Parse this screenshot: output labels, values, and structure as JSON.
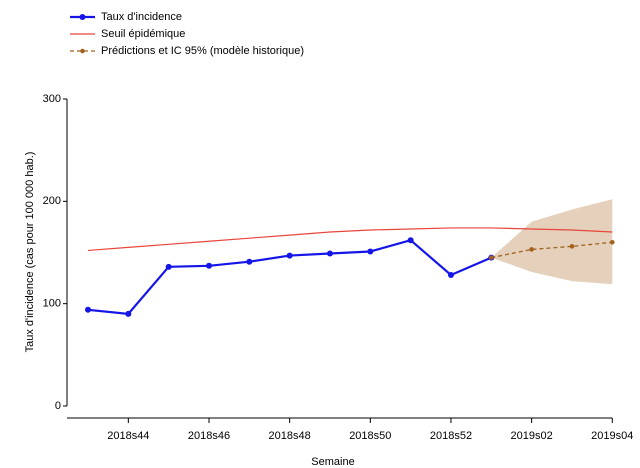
{
  "chart_data": {
    "type": "line",
    "categories": [
      null,
      "2018s44",
      null,
      "2018s46",
      null,
      "2018s48",
      null,
      "2018s50",
      null,
      "2018s52",
      null,
      "2019s02",
      null,
      "2019s04"
    ],
    "x_label": "Semaine",
    "y_label": "Taux d'incidence (cas pour 100 000 hab.)",
    "ylim": [
      0,
      300
    ],
    "yticks": [
      0,
      100,
      200,
      300
    ],
    "legend": "top-left",
    "series": [
      {
        "name": "Taux d'incidence",
        "color": "#1515e8",
        "style": "solid",
        "markers": true,
        "values": [
          94,
          90,
          136,
          137,
          141,
          147,
          149,
          151,
          162,
          128,
          145,
          null,
          null,
          null
        ]
      },
      {
        "name": "Seuil épidémique",
        "color": "#e8453c",
        "style": "solid",
        "markers": false,
        "values": [
          152,
          155,
          158,
          161,
          164,
          167,
          170,
          172,
          173,
          174,
          174,
          173,
          172,
          170
        ]
      },
      {
        "name": "Prédictions et IC 95% (modèle historique)",
        "color": "#a0621e",
        "style": "dashed",
        "markers": true,
        "band_color": "#dcc0a4",
        "values": [
          null,
          null,
          null,
          null,
          null,
          null,
          null,
          null,
          null,
          null,
          145,
          153,
          156,
          160
        ],
        "ci_lower": [
          null,
          null,
          null,
          null,
          null,
          null,
          null,
          null,
          null,
          null,
          145,
          131,
          122,
          119
        ],
        "ci_upper": [
          null,
          null,
          null,
          null,
          null,
          null,
          null,
          null,
          null,
          null,
          145,
          180,
          192,
          202
        ]
      }
    ]
  }
}
